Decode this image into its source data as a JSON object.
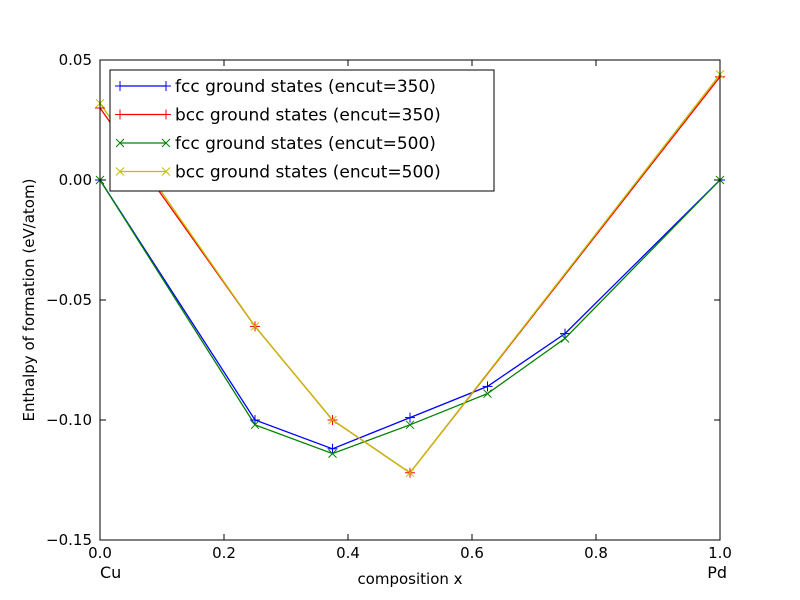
{
  "chart_data": {
    "type": "line",
    "xlabel": "composition x",
    "ylabel": "Enthalpy of formation (eV/atom)",
    "xlim": [
      0.0,
      1.0
    ],
    "ylim": [
      -0.15,
      0.05
    ],
    "x_ticks": [
      "0.0",
      "0.2",
      "0.4",
      "0.6",
      "0.8",
      "1.0"
    ],
    "y_ticks": [
      "0.05",
      "0.00",
      "−0.05",
      "−0.10",
      "−0.15"
    ],
    "x_endpoint_labels": {
      "left": "Cu",
      "right": "Pd"
    },
    "grid": false,
    "legend_position": "top-left",
    "series": [
      {
        "name": "fcc ground states (encut=350)",
        "color": "#0000ff",
        "marker": "plus",
        "x": [
          0.0,
          0.25,
          0.375,
          0.5,
          0.625,
          0.75,
          1.0
        ],
        "y": [
          0.0,
          -0.1,
          -0.112,
          -0.099,
          -0.086,
          -0.064,
          0.0
        ]
      },
      {
        "name": "bcc ground states (encut=350)",
        "color": "#ff0000",
        "marker": "plus",
        "x": [
          0.0,
          0.25,
          0.375,
          0.5,
          1.0
        ],
        "y": [
          0.03,
          -0.061,
          -0.1,
          -0.122,
          0.043
        ]
      },
      {
        "name": "fcc ground states (encut=500)",
        "color": "#008000",
        "marker": "x",
        "x": [
          0.0,
          0.25,
          0.375,
          0.5,
          0.625,
          0.75,
          1.0
        ],
        "y": [
          0.0,
          -0.102,
          -0.114,
          -0.102,
          -0.089,
          -0.066,
          0.0
        ]
      },
      {
        "name": "bcc ground states (encut=500)",
        "color": "#bfbf00",
        "marker": "x",
        "x": [
          0.0,
          0.25,
          0.375,
          0.5,
          1.0
        ],
        "y": [
          0.032,
          -0.061,
          -0.1,
          -0.122,
          0.044
        ]
      }
    ]
  }
}
